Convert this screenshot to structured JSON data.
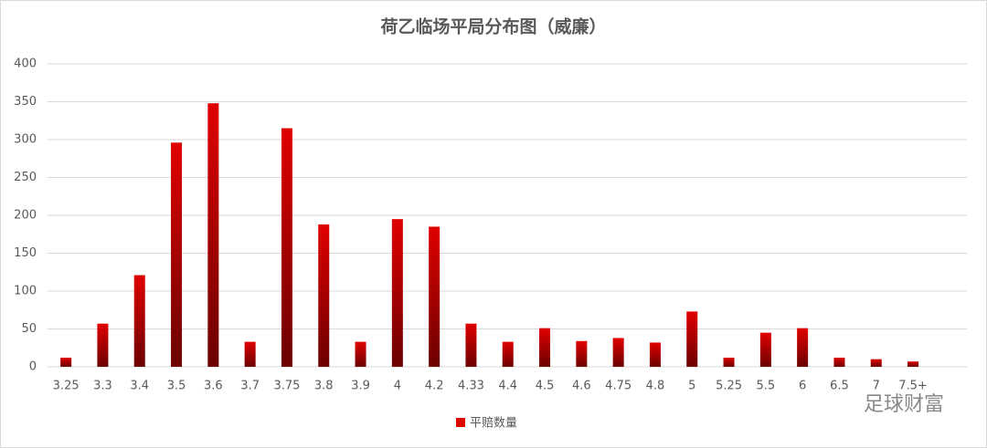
{
  "chart_data": {
    "type": "bar",
    "title": "荷乙临场平局分布图（威廉）",
    "categories": [
      "3.25",
      "3.3",
      "3.4",
      "3.5",
      "3.6",
      "3.7",
      "3.75",
      "3.8",
      "3.9",
      "4",
      "4.2",
      "4.33",
      "4.4",
      "4.5",
      "4.6",
      "4.75",
      "4.8",
      "5",
      "5.25",
      "5.5",
      "6",
      "6.5",
      "7",
      "7.5+"
    ],
    "series": [
      {
        "name": "平赔数量",
        "color": "#e00000",
        "values": [
          12,
          57,
          121,
          296,
          348,
          33,
          315,
          188,
          33,
          195,
          185,
          57,
          33,
          51,
          34,
          38,
          32,
          73,
          12,
          45,
          51,
          12,
          10,
          7
        ]
      }
    ],
    "ylim": [
      0,
      400
    ],
    "yticks": [
      0,
      50,
      100,
      150,
      200,
      250,
      300,
      350,
      400
    ],
    "grid": true,
    "legend": "bottom",
    "watermark": "足球财富"
  }
}
